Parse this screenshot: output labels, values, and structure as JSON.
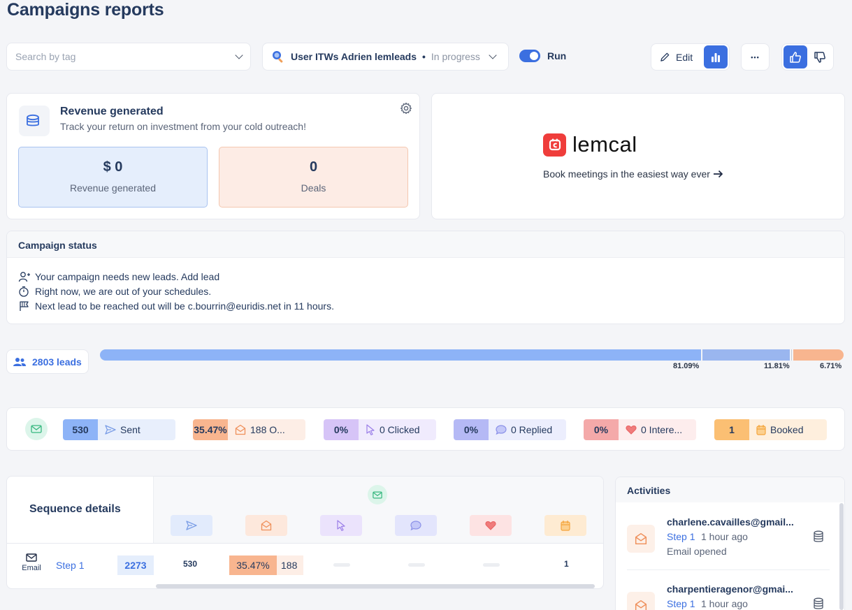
{
  "page": {
    "title": "Campaigns reports"
  },
  "toolbar": {
    "search_placeholder": "Search by tag",
    "campaign_name": "User ITWs Adrien lemleads",
    "campaign_sep": "•",
    "campaign_status": "In progress",
    "run_label": "Run",
    "edit_label": "Edit",
    "more_label": "•••"
  },
  "revenue": {
    "title": "Revenue generated",
    "subtitle": "Track your return on investment from your cold outreach!",
    "revenue_value": "$ 0",
    "revenue_label": "Revenue generated",
    "deals_value": "0",
    "deals_label": "Deals"
  },
  "lemcal": {
    "brand": "lemcal",
    "tagline": "Book meetings in the easiest way ever"
  },
  "campaign_status": {
    "title": "Campaign status",
    "lines": [
      "Your campaign needs new leads. Add lead",
      "Right now, we are out of your schedules.",
      "Next lead to be reached out will be c.bourrin@euridis.net in 11 hours."
    ]
  },
  "leads": {
    "count_label": "2803 leads",
    "segments": [
      {
        "percent": 81.09,
        "label": "81.09%"
      },
      {
        "percent": 11.81,
        "label": "11.81%"
      },
      {
        "percent": 6.71,
        "label": "6.71%"
      }
    ]
  },
  "stats": [
    {
      "num": "530",
      "label": "Sent",
      "num_color": "#8db3f7",
      "lab_color": "#e8effc",
      "icon": "send-icon"
    },
    {
      "num": "35.47%",
      "label": "188 O...",
      "num_color": "#f8b58f",
      "lab_color": "#fdeee6",
      "icon": "open-envelope-icon"
    },
    {
      "num": "0%",
      "label": "0 Clicked",
      "num_color": "#d6c4f7",
      "lab_color": "#f0ebfd",
      "icon": "cursor-icon"
    },
    {
      "num": "0%",
      "label": "0 Replied",
      "num_color": "#b5b9f5",
      "lab_color": "#eceefd",
      "icon": "chat-icon"
    },
    {
      "num": "0%",
      "label": "0 Intere...",
      "num_color": "#f4a9a9",
      "lab_color": "#fdeded",
      "icon": "heart-icon"
    },
    {
      "num": "1",
      "label": "Booked",
      "num_color": "#fbbf73",
      "lab_color": "#feefdd",
      "icon": "calendar-icon"
    }
  ],
  "sequence": {
    "title": "Sequence details",
    "step": {
      "type": "Email",
      "name": "Step 1",
      "count": "2273",
      "sent": "530",
      "open_pct": "35.47%",
      "opens": "188",
      "booked": "1"
    }
  },
  "activities": {
    "title": "Activities",
    "items": [
      {
        "email": "charlene.cavailles@gmail...",
        "step": "Step 1",
        "time": "1 hour ago",
        "event": "Email opened"
      },
      {
        "email": "charpentieragenor@gmai...",
        "step": "Step 1",
        "time": "1 hour ago",
        "event": ""
      }
    ]
  }
}
